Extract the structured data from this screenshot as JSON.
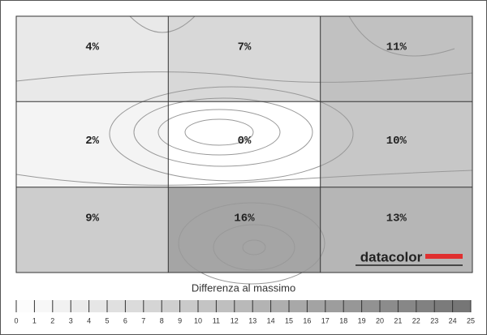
{
  "chart_data": {
    "type": "heatmap",
    "values": [
      [
        4,
        7,
        11
      ],
      [
        2,
        0,
        10
      ],
      [
        9,
        16,
        13
      ]
    ],
    "value_labels": [
      [
        "4%",
        "7%",
        "11%"
      ],
      [
        "2%",
        "0%",
        "10%"
      ],
      [
        "9%",
        "16%",
        "13%"
      ]
    ],
    "colorbar": {
      "title": "Differenza al massimo",
      "ticks": [
        0,
        1,
        2,
        3,
        4,
        5,
        6,
        7,
        8,
        9,
        10,
        11,
        12,
        13,
        14,
        15,
        16,
        17,
        18,
        19,
        20,
        21,
        22,
        23,
        24,
        25
      ]
    },
    "logo": "datacolor"
  }
}
